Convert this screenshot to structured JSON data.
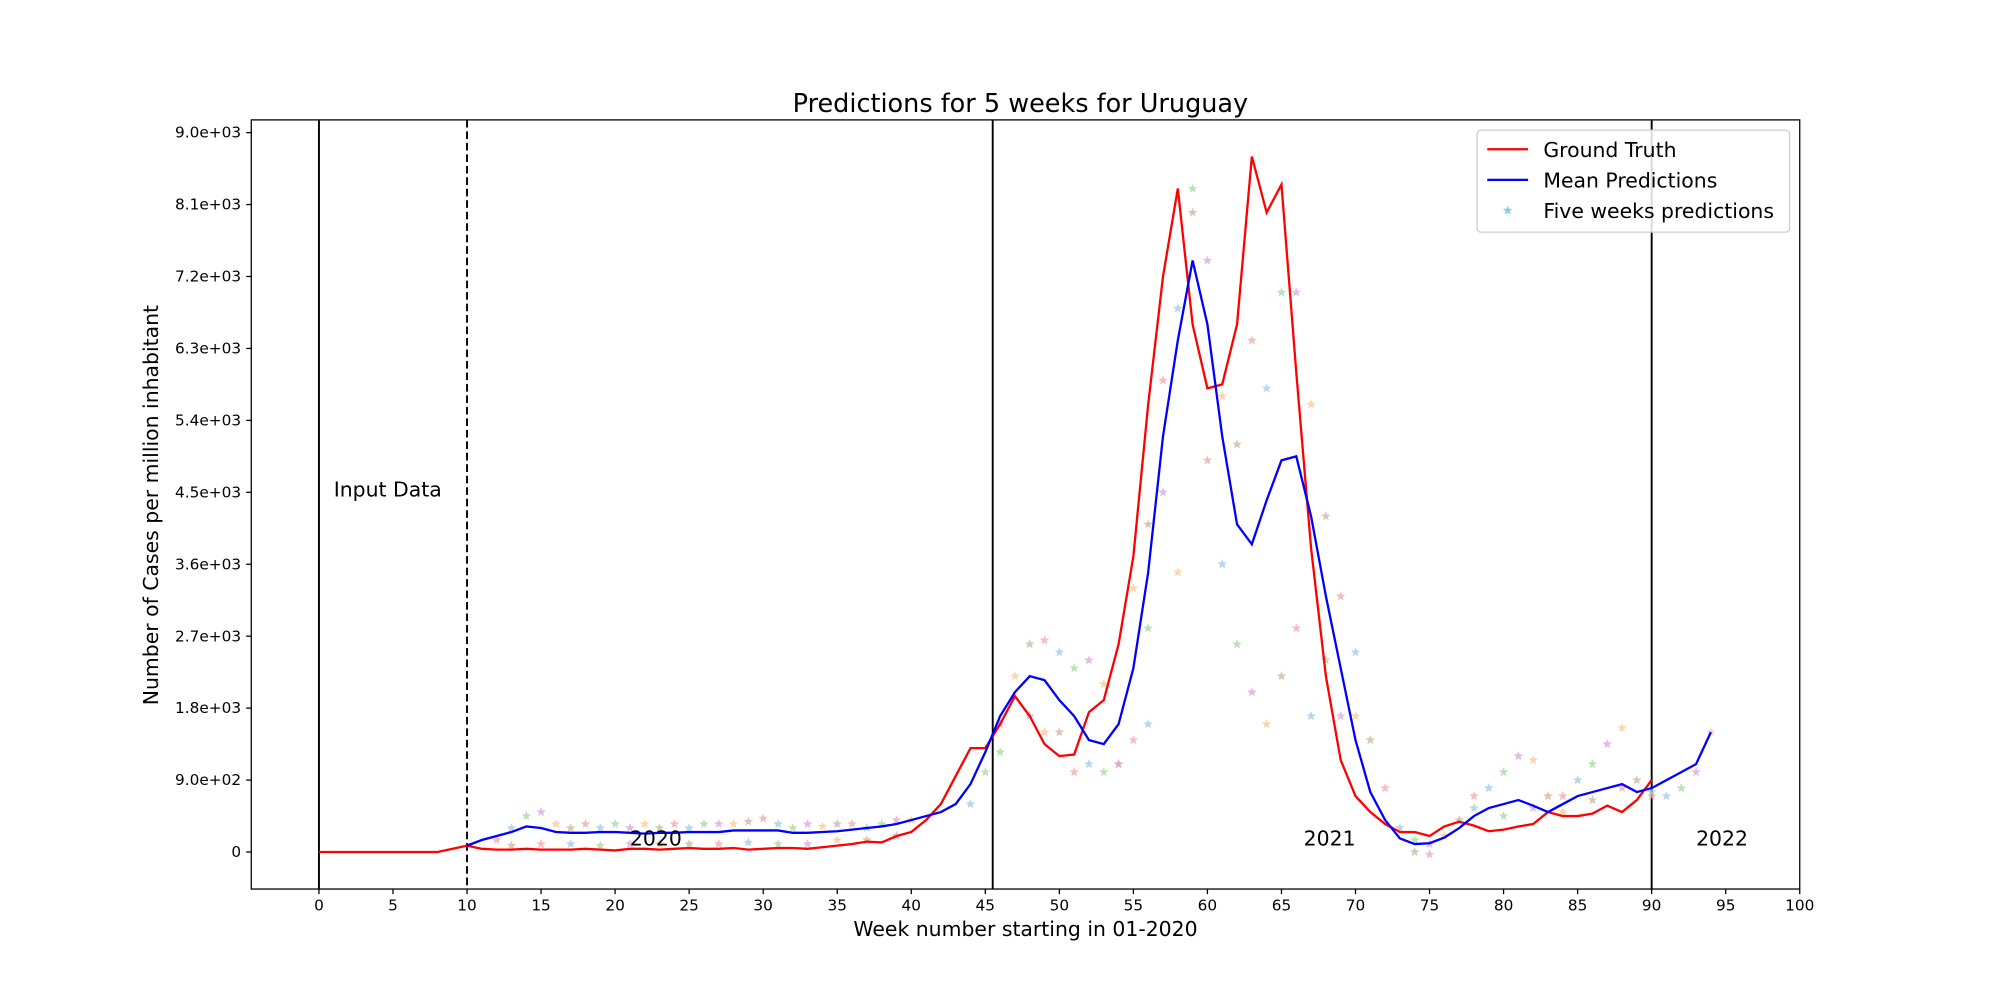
{
  "chart_data": {
    "type": "line",
    "title": "Predictions for 5 weeks for Uruguay",
    "xlabel": "Week number starting in 01-2020",
    "ylabel": "Number of Cases per million inhabitant",
    "xlim": [
      -4.57,
      100
    ],
    "ylim": [
      -463,
      9159
    ],
    "xticks": [
      0,
      5,
      10,
      15,
      20,
      25,
      30,
      35,
      40,
      45,
      50,
      55,
      60,
      65,
      70,
      75,
      80,
      85,
      90,
      95,
      100
    ],
    "yticks": [
      0,
      {
        "value": 900,
        "label": "9.0e+02"
      },
      {
        "value": 1800,
        "label": "1.8e+03"
      },
      {
        "value": 2700,
        "label": "2.7e+03"
      },
      {
        "value": 3600,
        "label": "3.6e+03"
      },
      {
        "value": 4500,
        "label": "4.5e+03"
      },
      {
        "value": 5400,
        "label": "5.4e+03"
      },
      {
        "value": 6300,
        "label": "6.3e+03"
      },
      {
        "value": 7200,
        "label": "7.2e+03"
      },
      {
        "value": 8100,
        "label": "8.1e+03"
      },
      {
        "value": 9000,
        "label": "9.0e+03"
      }
    ],
    "legend": "upper right",
    "series": [
      {
        "name": "Ground Truth",
        "color": "#ff0000",
        "type": "line",
        "x": [
          0,
          1,
          2,
          3,
          4,
          5,
          6,
          7,
          8,
          9,
          10,
          11,
          12,
          13,
          14,
          15,
          16,
          17,
          18,
          19,
          20,
          21,
          22,
          23,
          24,
          25,
          26,
          27,
          28,
          29,
          30,
          31,
          32,
          33,
          34,
          35,
          36,
          37,
          38,
          39,
          40,
          41,
          42,
          43,
          44,
          45,
          46,
          47,
          48,
          49,
          50,
          51,
          52,
          53,
          54,
          55,
          56,
          57,
          58,
          59,
          60,
          61,
          62,
          63,
          64,
          65,
          66,
          67,
          68,
          69,
          70,
          71,
          72,
          73,
          74,
          75,
          76,
          77,
          78,
          79,
          80,
          81,
          82,
          83,
          84,
          85,
          86,
          87,
          88,
          89,
          90
        ],
        "values": [
          0,
          0,
          0,
          0,
          0,
          0,
          0,
          0,
          0,
          40,
          80,
          40,
          30,
          30,
          40,
          30,
          30,
          30,
          40,
          30,
          20,
          40,
          40,
          30,
          40,
          50,
          40,
          40,
          50,
          30,
          40,
          50,
          50,
          40,
          60,
          80,
          100,
          130,
          120,
          200,
          250,
          400,
          600,
          950,
          1300,
          1300,
          1600,
          1950,
          1700,
          1350,
          1200,
          1220,
          1750,
          1900,
          2600,
          3700,
          5600,
          7200,
          8300,
          6600,
          5800,
          5850,
          6600,
          8700,
          8000,
          8350,
          6000,
          3800,
          2200,
          1150,
          700,
          500,
          350,
          250,
          250,
          200,
          320,
          380,
          330,
          260,
          280,
          320,
          350,
          500,
          450,
          450,
          480,
          580,
          500,
          650,
          900
        ]
      },
      {
        "name": "Mean Predictions",
        "color": "#0000ff",
        "type": "line",
        "x": [
          10,
          11,
          12,
          13,
          14,
          15,
          16,
          17,
          18,
          19,
          20,
          21,
          22,
          23,
          24,
          25,
          26,
          27,
          28,
          29,
          30,
          31,
          32,
          33,
          34,
          35,
          36,
          37,
          38,
          39,
          40,
          41,
          42,
          43,
          44,
          45,
          46,
          47,
          48,
          49,
          50,
          51,
          52,
          53,
          54,
          55,
          56,
          57,
          58,
          59,
          60,
          61,
          62,
          63,
          64,
          65,
          66,
          67,
          68,
          69,
          70,
          71,
          72,
          73,
          74,
          75,
          76,
          77,
          78,
          79,
          80,
          81,
          82,
          83,
          84,
          85,
          86,
          87,
          88,
          89,
          90,
          91,
          92,
          93,
          94
        ],
        "values": [
          80,
          150,
          200,
          250,
          320,
          300,
          250,
          240,
          240,
          250,
          250,
          240,
          230,
          240,
          240,
          250,
          250,
          250,
          270,
          270,
          270,
          270,
          240,
          240,
          250,
          260,
          280,
          300,
          320,
          350,
          400,
          450,
          500,
          600,
          850,
          1250,
          1700,
          2000,
          2200,
          2150,
          1900,
          1700,
          1400,
          1350,
          1600,
          2300,
          3500,
          5200,
          6400,
          7400,
          6600,
          5200,
          4100,
          3850,
          4400,
          4900,
          4950,
          4200,
          3200,
          2300,
          1400,
          750,
          400,
          170,
          100,
          110,
          180,
          300,
          450,
          550,
          600,
          650,
          580,
          500,
          600,
          700,
          750,
          800,
          850,
          750,
          800,
          900,
          1000,
          1100,
          1500
        ]
      },
      {
        "name": "Five weeks predictions",
        "color": "#87ceeb",
        "type": "scatter",
        "palette": [
          "#f4a6a6",
          "#9ecae1",
          "#a1d99b",
          "#d7a6d9",
          "#fdc58f",
          "#c9b59c"
        ],
        "x": [
          12,
          13,
          14,
          15,
          16,
          17,
          18,
          19,
          20,
          21,
          22,
          23,
          24,
          25,
          26,
          27,
          28,
          29,
          30,
          31,
          32,
          33,
          34,
          35,
          36,
          37,
          38,
          39,
          40,
          13,
          15,
          17,
          19,
          21,
          23,
          25,
          27,
          29,
          31,
          33,
          35,
          37,
          39,
          44,
          45,
          46,
          47,
          48,
          49,
          50,
          51,
          52,
          53,
          54,
          55,
          56,
          46,
          48,
          49,
          50,
          51,
          52,
          53,
          54,
          55,
          56,
          57,
          58,
          59,
          60,
          61,
          62,
          63,
          64,
          65,
          66,
          67,
          68,
          69,
          70,
          56,
          57,
          58,
          59,
          60,
          61,
          62,
          63,
          64,
          65,
          66,
          67,
          68,
          69,
          70,
          71,
          72,
          73,
          74,
          75,
          76,
          77,
          78,
          79,
          80,
          81,
          82,
          83,
          84,
          85,
          86,
          87,
          88,
          89,
          90,
          91,
          92,
          93,
          94,
          74,
          75,
          78,
          80,
          82,
          84,
          86,
          88,
          90
        ],
        "values": [
          150,
          300,
          450,
          500,
          350,
          300,
          350,
          300,
          350,
          300,
          350,
          300,
          350,
          300,
          350,
          350,
          350,
          380,
          420,
          350,
          300,
          350,
          320,
          350,
          350,
          300,
          350,
          400,
          400,
          80,
          100,
          100,
          80,
          100,
          100,
          100,
          100,
          120,
          100,
          100,
          150,
          150,
          200,
          600,
          1000,
          1600,
          2200,
          2600,
          2650,
          2500,
          2300,
          2400,
          2100,
          1100,
          1400,
          1600,
          1250,
          1700,
          1500,
          1500,
          1000,
          1100,
          1000,
          1100,
          3300,
          4100,
          5900,
          6800,
          8300,
          7400,
          5700,
          5100,
          6400,
          5800,
          7000,
          7000,
          5600,
          4200,
          3200,
          2500,
          2800,
          4500,
          3500,
          8000,
          4900,
          3600,
          2600,
          2000,
          1600,
          2200,
          2800,
          1700,
          2400,
          1700,
          1700,
          1400,
          800,
          300,
          150,
          100,
          200,
          400,
          700,
          800,
          1000,
          1200,
          1150,
          700,
          700,
          900,
          1100,
          1350,
          1550,
          900,
          700,
          700,
          800,
          1000,
          1500,
          0,
          -30,
          550,
          450,
          550,
          500,
          650,
          800,
          750
        ]
      }
    ],
    "vlines": [
      {
        "x": 0,
        "style": "solid"
      },
      {
        "x": 10,
        "style": "dashed"
      },
      {
        "x": 45.5,
        "style": "solid"
      },
      {
        "x": 90,
        "style": "solid"
      }
    ],
    "annotations": [
      {
        "text": "Input Data",
        "x": 1,
        "y": 4450
      },
      {
        "text": "2020",
        "x": 21,
        "y": 80
      },
      {
        "text": "2021",
        "x": 66.5,
        "y": 80
      },
      {
        "text": "2022",
        "x": 93,
        "y": 80
      }
    ]
  }
}
